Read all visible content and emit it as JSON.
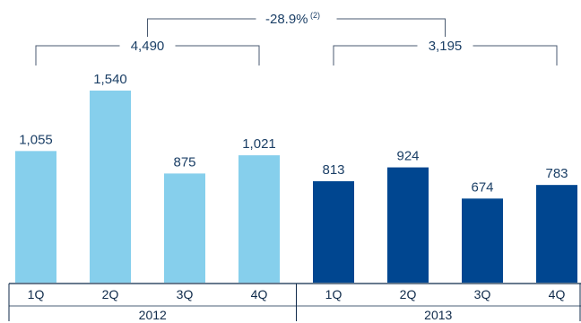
{
  "chart_data": {
    "type": "bar",
    "title": "",
    "xlabel": "",
    "ylabel": "",
    "ylim": [
      0,
      1700
    ],
    "grid": false,
    "colors": {
      "2012": "#86cfec",
      "2013": "#004690",
      "brackets": "#4a5a70",
      "text": "#1b3f66"
    },
    "groups": [
      {
        "label": "2012",
        "color_key": "2012",
        "categories": [
          "1Q",
          "2Q",
          "3Q",
          "4Q"
        ],
        "values": [
          1055,
          1540,
          875,
          1021
        ],
        "value_labels": [
          "1,055",
          "1,540",
          "875",
          "1,021"
        ]
      },
      {
        "label": "2013",
        "color_key": "2013",
        "categories": [
          "1Q",
          "2Q",
          "3Q",
          "4Q"
        ],
        "values": [
          813,
          924,
          674,
          783
        ],
        "value_labels": [
          "813",
          "924",
          "674",
          "783"
        ]
      }
    ],
    "annotations": [
      {
        "type": "group-total",
        "group": "2012",
        "text": "4,490"
      },
      {
        "type": "group-total",
        "group": "2013",
        "text": "3,195"
      },
      {
        "type": "change",
        "text": "-28.9%",
        "superscript": "(2)"
      }
    ]
  }
}
